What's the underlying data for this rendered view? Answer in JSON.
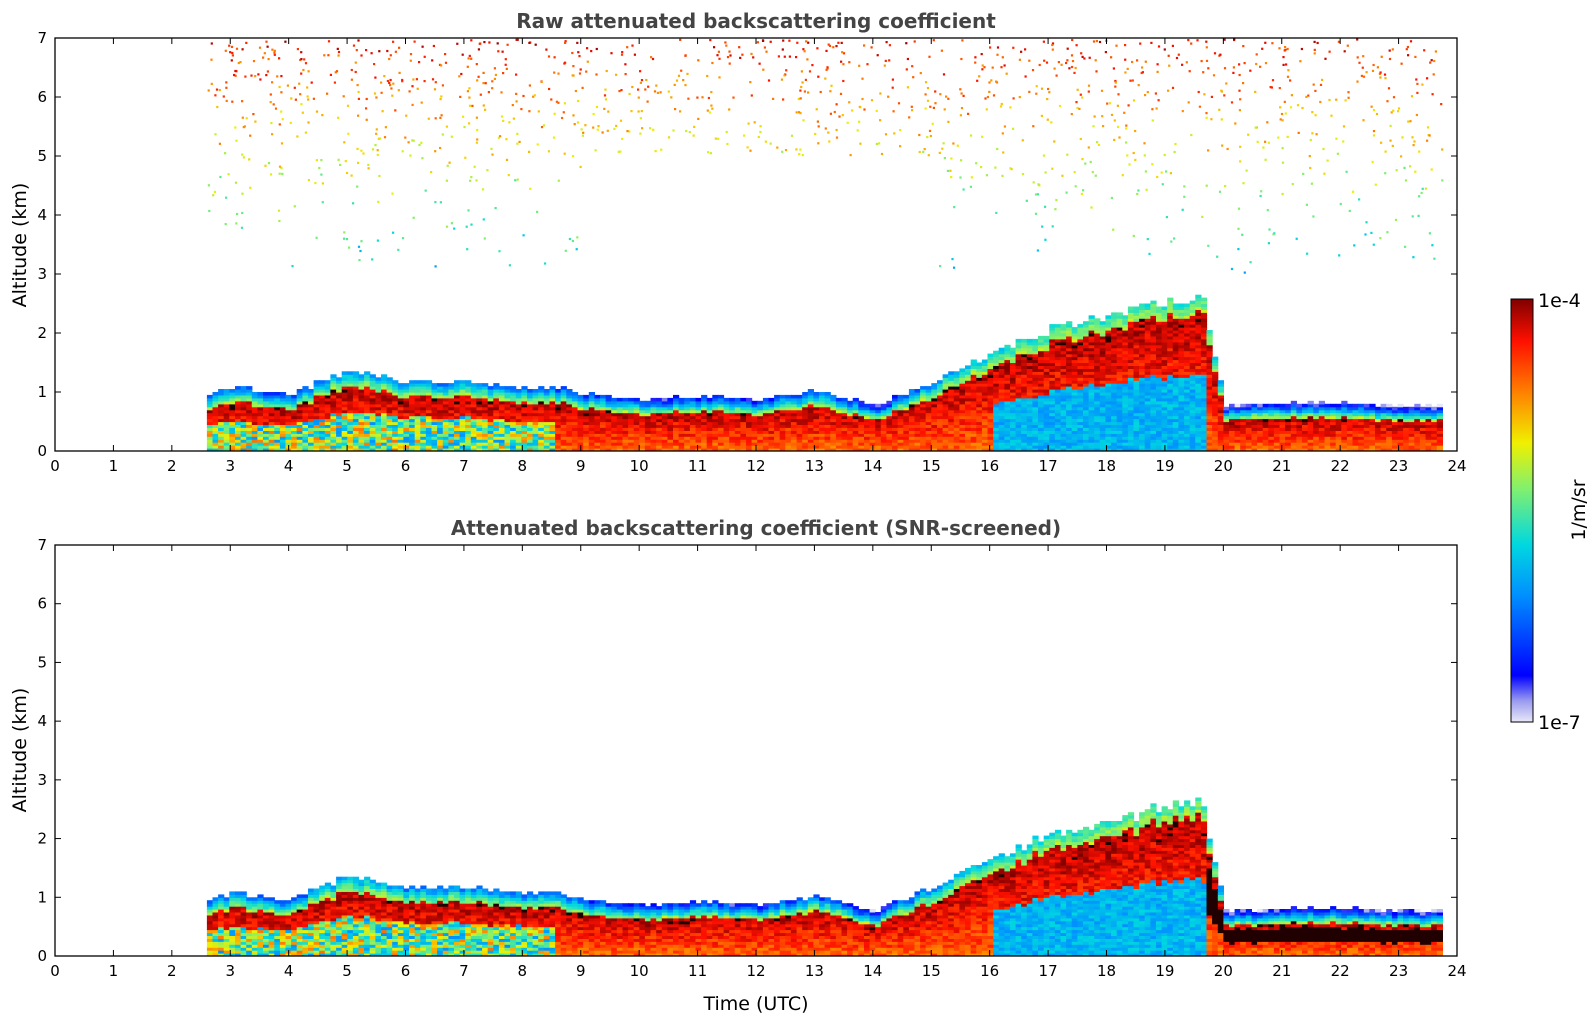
{
  "chart_data": [
    {
      "type": "heatmap",
      "title": "Raw attenuated backscattering coefficient",
      "xlabel": "",
      "ylabel": "Altitude (km)",
      "xlim": [
        0,
        24
      ],
      "ylim": [
        0,
        7
      ],
      "xticks": [
        "0",
        "1",
        "2",
        "3",
        "4",
        "5",
        "6",
        "7",
        "8",
        "9",
        "10",
        "11",
        "12",
        "13",
        "14",
        "15",
        "16",
        "17",
        "18",
        "19",
        "20",
        "21",
        "22",
        "23",
        "24"
      ],
      "yticks": [
        "0",
        "1",
        "2",
        "3",
        "4",
        "5",
        "6",
        "7"
      ],
      "data_start_time": 2.6,
      "data_end_time": 23.75,
      "boundary_layer_top_km": {
        "x": [
          2.6,
          3,
          4,
          5,
          6,
          7,
          8,
          8.5,
          9,
          10,
          11,
          12,
          13,
          14,
          15,
          16,
          17,
          18,
          19,
          19.6,
          20,
          21,
          22,
          23,
          23.75
        ],
        "y": [
          0.7,
          0.8,
          0.7,
          1.1,
          0.9,
          0.9,
          0.8,
          0.8,
          0.7,
          0.6,
          0.65,
          0.6,
          0.75,
          0.5,
          0.9,
          1.4,
          1.8,
          2.0,
          2.3,
          2.3,
          0.5,
          0.55,
          0.55,
          0.5,
          0.5
        ]
      },
      "noise_scatter": "upper troposphere noise from ~4 to 7 km, strongest near 7 km"
    },
    {
      "type": "heatmap",
      "title": "Attenuated backscattering coefficient (SNR-screened)",
      "xlabel": "Time (UTC)",
      "ylabel": "Altitude (km)",
      "xlim": [
        0,
        24
      ],
      "ylim": [
        0,
        7
      ],
      "xticks": [
        "0",
        "1",
        "2",
        "3",
        "4",
        "5",
        "6",
        "7",
        "8",
        "9",
        "10",
        "11",
        "12",
        "13",
        "14",
        "15",
        "16",
        "17",
        "18",
        "19",
        "20",
        "21",
        "22",
        "23",
        "24"
      ],
      "yticks": [
        "0",
        "1",
        "2",
        "3",
        "4",
        "5",
        "6",
        "7"
      ],
      "data_start_time": 2.6,
      "data_end_time": 23.75
    }
  ],
  "colorbar": {
    "max_label": "1e-4",
    "min_label": "1e-7",
    "unit_label": "1/m/sr",
    "colormap": "jet"
  }
}
